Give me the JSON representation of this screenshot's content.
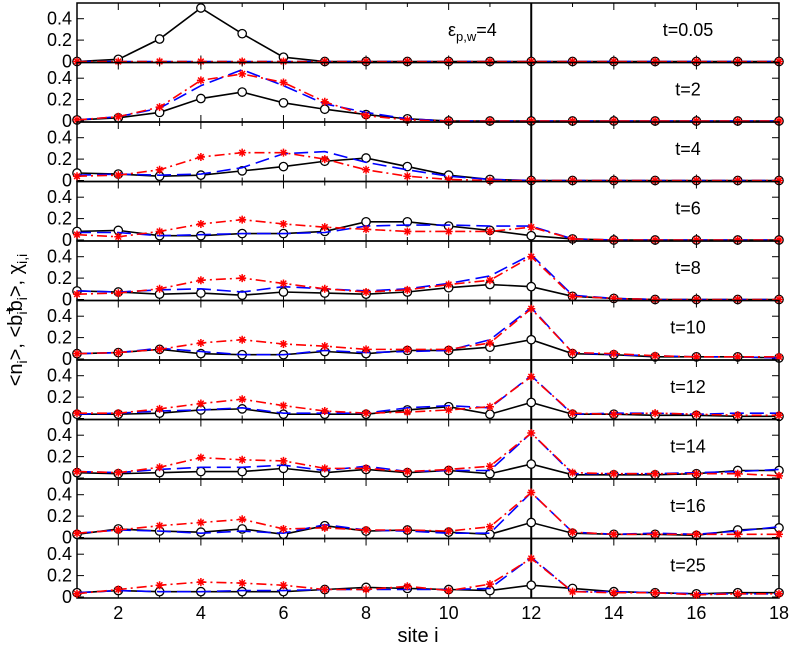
{
  "chart_data": {
    "type": "line",
    "xlabel": "site i",
    "ylabel": "<n_i>, <b_i^+b_i>, χ_{i,i}",
    "ylabel_parts": {
      "p1": "<n",
      "s1": "i",
      "p2": ">, <b",
      "sup2": "+",
      "sub2": "i",
      "p3": "b",
      "sub3": "i",
      "p4": ">, χ",
      "s4": "i,i"
    },
    "xlim": [
      1,
      18
    ],
    "ylim": [
      0,
      0.5
    ],
    "x_ticks": [
      2,
      4,
      6,
      8,
      10,
      12,
      14,
      16,
      18
    ],
    "y_ticks": [
      0,
      0.2,
      0.4
    ],
    "vline_x": 12,
    "annotation": {
      "text_main": "ε",
      "text_sub": "p,w",
      "text_tail": "=4",
      "panel": 0
    },
    "series_styles": [
      {
        "id": "black",
        "color": "#000000",
        "dash": "",
        "marker": "circle"
      },
      {
        "id": "blue",
        "color": "#0000ff",
        "dash": "14,6",
        "marker": "none"
      },
      {
        "id": "red",
        "color": "#ff0000",
        "dash": "10,4,2,4",
        "marker": "star"
      }
    ],
    "x": [
      1,
      2,
      3,
      4,
      5,
      6,
      7,
      8,
      9,
      10,
      11,
      12,
      13,
      14,
      15,
      16,
      17,
      18
    ],
    "panels": [
      {
        "label": "t=0.05",
        "series": [
          {
            "values": [
              0,
              0.02,
              0.21,
              0.5,
              0.26,
              0.04,
              0,
              0,
              0,
              0,
              0,
              0,
              0,
              0,
              0,
              0,
              0,
              0
            ]
          },
          {
            "values": [
              0,
              0,
              0,
              0,
              0,
              0,
              0,
              0,
              0,
              0,
              0,
              0,
              0,
              0,
              0,
              0,
              0,
              0
            ]
          },
          {
            "values": [
              0,
              0,
              0,
              0,
              0,
              0,
              0,
              0,
              0,
              0,
              0,
              0,
              0,
              0,
              0,
              0,
              0,
              0
            ]
          }
        ]
      },
      {
        "label": "t=2",
        "series": [
          {
            "values": [
              0.01,
              0.03,
              0.08,
              0.21,
              0.27,
              0.17,
              0.11,
              0.06,
              0.02,
              0,
              0,
              0,
              0,
              0,
              0,
              0,
              0,
              0
            ]
          },
          {
            "values": [
              0.01,
              0.04,
              0.12,
              0.33,
              0.48,
              0.33,
              0.16,
              0.08,
              0.02,
              0,
              0,
              0,
              0,
              0,
              0,
              0,
              0,
              0
            ]
          },
          {
            "values": [
              0.01,
              0.04,
              0.13,
              0.38,
              0.44,
              0.36,
              0.18,
              0.05,
              0.01,
              0,
              0,
              0,
              0,
              0,
              0,
              0,
              0,
              0
            ]
          }
        ]
      },
      {
        "label": "t=4",
        "series": [
          {
            "values": [
              0.07,
              0.06,
              0.04,
              0.05,
              0.09,
              0.13,
              0.18,
              0.21,
              0.13,
              0.05,
              0.01,
              0,
              0,
              0,
              0,
              0,
              0,
              0
            ]
          },
          {
            "values": [
              0.05,
              0.06,
              0.05,
              0.06,
              0.12,
              0.25,
              0.27,
              0.17,
              0.1,
              0.04,
              0.01,
              0,
              0,
              0,
              0,
              0,
              0,
              0
            ]
          },
          {
            "values": [
              0.04,
              0.05,
              0.1,
              0.22,
              0.26,
              0.26,
              0.2,
              0.1,
              0.04,
              0.01,
              0,
              0,
              0,
              0,
              0,
              0,
              0,
              0
            ]
          }
        ]
      },
      {
        "label": "t=6",
        "series": [
          {
            "values": [
              0.08,
              0.09,
              0.04,
              0.04,
              0.06,
              0.06,
              0.08,
              0.17,
              0.17,
              0.13,
              0.09,
              0.04,
              0.01,
              0,
              0,
              0,
              0,
              0
            ]
          },
          {
            "values": [
              0.07,
              0.07,
              0.04,
              0.05,
              0.06,
              0.06,
              0.07,
              0.13,
              0.14,
              0.14,
              0.13,
              0.13,
              0.01,
              0,
              0,
              0,
              0,
              0
            ]
          },
          {
            "values": [
              0.05,
              0.03,
              0.08,
              0.15,
              0.19,
              0.15,
              0.12,
              0.1,
              0.08,
              0.08,
              0.08,
              0.12,
              0.01,
              0,
              0,
              0,
              0,
              0
            ]
          }
        ]
      },
      {
        "label": "t=8",
        "series": [
          {
            "values": [
              0.08,
              0.07,
              0.05,
              0.06,
              0.04,
              0.07,
              0.06,
              0.05,
              0.07,
              0.11,
              0.14,
              0.12,
              0.03,
              0.01,
              0,
              0,
              0,
              0
            ]
          },
          {
            "values": [
              0.08,
              0.07,
              0.09,
              0.1,
              0.07,
              0.12,
              0.1,
              0.08,
              0.1,
              0.15,
              0.22,
              0.42,
              0.04,
              0.01,
              0,
              0,
              0,
              0
            ]
          },
          {
            "values": [
              0.05,
              0.06,
              0.1,
              0.18,
              0.2,
              0.15,
              0.1,
              0.07,
              0.09,
              0.14,
              0.18,
              0.4,
              0.03,
              0.01,
              0,
              0,
              0,
              0
            ]
          }
        ]
      },
      {
        "label": "t=10",
        "series": [
          {
            "values": [
              0.05,
              0.06,
              0.09,
              0.05,
              0.04,
              0.04,
              0.07,
              0.05,
              0.08,
              0.08,
              0.11,
              0.18,
              0.05,
              0.04,
              0.02,
              0.02,
              0.02,
              0.01
            ]
          },
          {
            "values": [
              0.05,
              0.06,
              0.1,
              0.07,
              0.04,
              0.04,
              0.08,
              0.06,
              0.07,
              0.08,
              0.18,
              0.48,
              0.06,
              0.04,
              0.03,
              0.02,
              0.02,
              0.01
            ]
          },
          {
            "values": [
              0.05,
              0.06,
              0.09,
              0.15,
              0.18,
              0.14,
              0.12,
              0.09,
              0.09,
              0.09,
              0.15,
              0.47,
              0.06,
              0.05,
              0.03,
              0.02,
              0.02,
              0.02
            ]
          }
        ]
      },
      {
        "label": "t=12",
        "series": [
          {
            "values": [
              0.04,
              0.04,
              0.05,
              0.08,
              0.09,
              0.04,
              0.04,
              0.04,
              0.08,
              0.11,
              0.04,
              0.15,
              0.04,
              0.04,
              0.03,
              0.03,
              0.02,
              0.02
            ]
          },
          {
            "values": [
              0.04,
              0.05,
              0.07,
              0.08,
              0.1,
              0.05,
              0.05,
              0.05,
              0.1,
              0.12,
              0.1,
              0.4,
              0.04,
              0.05,
              0.05,
              0.04,
              0.05,
              0.05
            ]
          },
          {
            "values": [
              0.05,
              0.05,
              0.09,
              0.14,
              0.18,
              0.12,
              0.07,
              0.05,
              0.06,
              0.08,
              0.11,
              0.39,
              0.05,
              0.04,
              0.05,
              0.04,
              0.03,
              0.03
            ]
          }
        ]
      },
      {
        "label": "t=14",
        "series": [
          {
            "values": [
              0.05,
              0.04,
              0.05,
              0.06,
              0.06,
              0.09,
              0.05,
              0.08,
              0.05,
              0.07,
              0.04,
              0.13,
              0.03,
              0.03,
              0.03,
              0.04,
              0.07,
              0.07
            ]
          },
          {
            "values": [
              0.06,
              0.05,
              0.08,
              0.1,
              0.1,
              0.12,
              0.07,
              0.11,
              0.06,
              0.07,
              0.07,
              0.42,
              0.04,
              0.04,
              0.04,
              0.05,
              0.06,
              0.08
            ]
          },
          {
            "values": [
              0.06,
              0.05,
              0.1,
              0.19,
              0.17,
              0.16,
              0.09,
              0.09,
              0.06,
              0.08,
              0.11,
              0.42,
              0.05,
              0.04,
              0.04,
              0.04,
              0.04,
              0.02
            ]
          }
        ]
      },
      {
        "label": "t=16",
        "series": [
          {
            "values": [
              0.03,
              0.08,
              0.06,
              0.05,
              0.08,
              0.03,
              0.11,
              0.06,
              0.07,
              0.05,
              0.03,
              0.14,
              0.04,
              0.03,
              0.03,
              0.02,
              0.07,
              0.09
            ]
          },
          {
            "values": [
              0.04,
              0.07,
              0.06,
              0.04,
              0.06,
              0.04,
              0.12,
              0.07,
              0.06,
              0.04,
              0.04,
              0.42,
              0.05,
              0.03,
              0.04,
              0.03,
              0.06,
              0.1
            ]
          },
          {
            "values": [
              0.04,
              0.07,
              0.11,
              0.14,
              0.17,
              0.08,
              0.09,
              0.07,
              0.07,
              0.06,
              0.1,
              0.42,
              0.05,
              0.03,
              0.03,
              0.03,
              0.03,
              0.03
            ]
          }
        ]
      },
      {
        "label": "t=25",
        "series": [
          {
            "values": [
              0.04,
              0.06,
              0.05,
              0.05,
              0.05,
              0.05,
              0.07,
              0.09,
              0.08,
              0.07,
              0.06,
              0.11,
              0.08,
              0.05,
              0.04,
              0.03,
              0.04,
              0.04
            ]
          },
          {
            "values": [
              0.04,
              0.06,
              0.05,
              0.05,
              0.06,
              0.06,
              0.07,
              0.07,
              0.07,
              0.07,
              0.08,
              0.37,
              0.05,
              0.05,
              0.04,
              0.03,
              0.03,
              0.03
            ]
          },
          {
            "values": [
              0.03,
              0.07,
              0.11,
              0.14,
              0.13,
              0.11,
              0.07,
              0.07,
              0.1,
              0.06,
              0.12,
              0.36,
              0.05,
              0.04,
              0.04,
              0.02,
              0.03,
              0.03
            ]
          }
        ]
      }
    ]
  }
}
